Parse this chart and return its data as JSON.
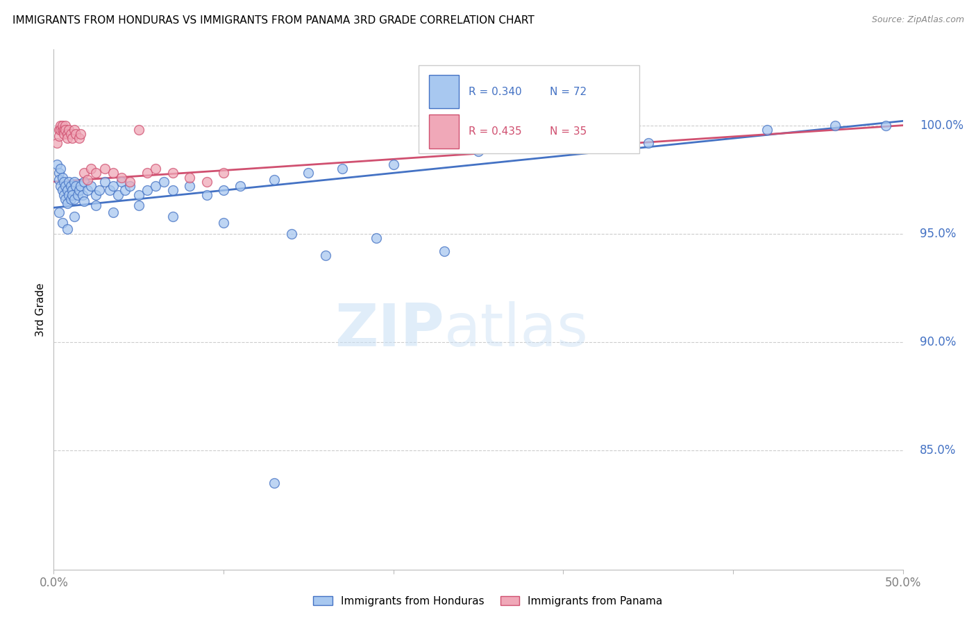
{
  "title": "IMMIGRANTS FROM HONDURAS VS IMMIGRANTS FROM PANAMA 3RD GRADE CORRELATION CHART",
  "source": "Source: ZipAtlas.com",
  "ylabel": "3rd Grade",
  "ytick_labels": [
    "100.0%",
    "95.0%",
    "90.0%",
    "85.0%"
  ],
  "ytick_values": [
    1.0,
    0.95,
    0.9,
    0.85
  ],
  "xlim": [
    0.0,
    0.5
  ],
  "ylim": [
    0.795,
    1.035
  ],
  "legend_r1": "R = 0.340",
  "legend_n1": "N = 72",
  "legend_r2": "R = 0.435",
  "legend_n2": "N = 35",
  "watermark_zip": "ZIP",
  "watermark_atlas": "atlas",
  "color_honduras": "#a8c8f0",
  "color_panama": "#f0a8b8",
  "color_line_honduras": "#4472c4",
  "color_line_panama": "#d05070",
  "color_yticks": "#4472c4",
  "color_xticks": "#808080",
  "honduras_x": [
    0.002,
    0.003,
    0.003,
    0.004,
    0.004,
    0.005,
    0.005,
    0.006,
    0.006,
    0.007,
    0.007,
    0.008,
    0.008,
    0.009,
    0.009,
    0.01,
    0.01,
    0.011,
    0.011,
    0.012,
    0.012,
    0.013,
    0.014,
    0.015,
    0.016,
    0.017,
    0.018,
    0.02,
    0.022,
    0.025,
    0.027,
    0.03,
    0.033,
    0.035,
    0.038,
    0.04,
    0.042,
    0.045,
    0.05,
    0.055,
    0.06,
    0.065,
    0.07,
    0.08,
    0.09,
    0.1,
    0.11,
    0.13,
    0.15,
    0.17,
    0.2,
    0.25,
    0.3,
    0.35,
    0.42,
    0.46,
    0.49,
    0.003,
    0.005,
    0.008,
    0.012,
    0.018,
    0.025,
    0.035,
    0.05,
    0.07,
    0.1,
    0.14,
    0.19,
    0.16,
    0.23,
    0.13
  ],
  "honduras_y": [
    0.982,
    0.978,
    0.975,
    0.972,
    0.98,
    0.97,
    0.976,
    0.968,
    0.974,
    0.966,
    0.972,
    0.964,
    0.97,
    0.968,
    0.974,
    0.966,
    0.972,
    0.97,
    0.968,
    0.974,
    0.966,
    0.972,
    0.968,
    0.97,
    0.972,
    0.968,
    0.974,
    0.97,
    0.972,
    0.968,
    0.97,
    0.974,
    0.97,
    0.972,
    0.968,
    0.974,
    0.97,
    0.972,
    0.968,
    0.97,
    0.972,
    0.974,
    0.97,
    0.972,
    0.968,
    0.97,
    0.972,
    0.975,
    0.978,
    0.98,
    0.982,
    0.988,
    0.99,
    0.992,
    0.998,
    1.0,
    1.0,
    0.96,
    0.955,
    0.952,
    0.958,
    0.965,
    0.963,
    0.96,
    0.963,
    0.958,
    0.955,
    0.95,
    0.948,
    0.94,
    0.942,
    0.835
  ],
  "panama_x": [
    0.002,
    0.003,
    0.003,
    0.004,
    0.004,
    0.005,
    0.005,
    0.006,
    0.006,
    0.007,
    0.007,
    0.008,
    0.008,
    0.009,
    0.01,
    0.011,
    0.012,
    0.013,
    0.015,
    0.016,
    0.018,
    0.02,
    0.022,
    0.025,
    0.03,
    0.035,
    0.04,
    0.045,
    0.05,
    0.055,
    0.06,
    0.07,
    0.08,
    0.09,
    0.1
  ],
  "panama_y": [
    0.992,
    0.998,
    0.995,
    1.0,
    0.998,
    0.998,
    1.0,
    0.998,
    0.996,
    1.0,
    0.998,
    0.996,
    0.994,
    0.998,
    0.996,
    0.994,
    0.998,
    0.996,
    0.994,
    0.996,
    0.978,
    0.975,
    0.98,
    0.978,
    0.98,
    0.978,
    0.976,
    0.974,
    0.998,
    0.978,
    0.98,
    0.978,
    0.976,
    0.974,
    0.978
  ],
  "blue_line_x": [
    0.0,
    0.5
  ],
  "blue_line_y": [
    0.962,
    1.002
  ],
  "pink_line_x": [
    0.0,
    0.5
  ],
  "pink_line_y": [
    0.974,
    1.0
  ]
}
